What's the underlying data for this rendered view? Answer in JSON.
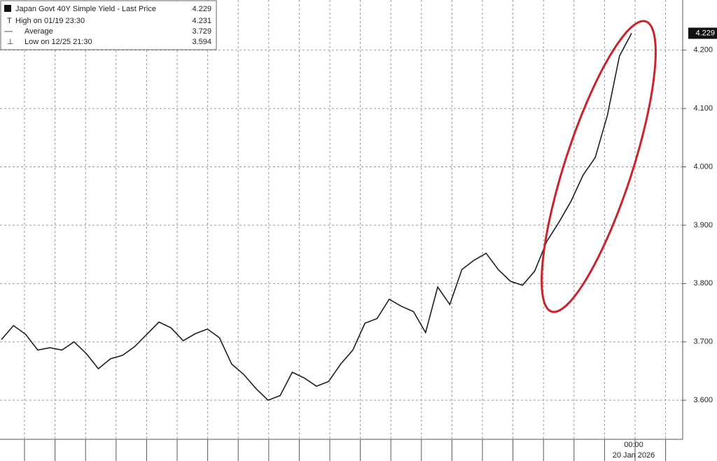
{
  "chart_data": {
    "type": "line",
    "legend": [
      {
        "name": "Japan Govt 40Y Simple Yield - Last Price",
        "value": 4.229
      },
      {
        "name": "High on 01/19 23:30",
        "value": 4.231
      },
      {
        "name": "Average",
        "value": 3.729
      },
      {
        "name": "Low on 12/25 21:30",
        "value": 3.594
      }
    ],
    "categories": [
      null,
      null,
      null,
      null,
      null,
      null,
      null,
      null,
      null,
      null,
      null,
      null,
      null,
      null,
      null,
      null,
      null,
      null,
      null,
      null,
      null,
      null,
      null,
      null,
      null,
      null,
      null,
      null,
      null,
      null,
      null,
      null,
      null,
      null,
      null,
      null,
      null,
      null,
      null,
      null,
      null,
      null,
      null,
      null,
      null,
      null,
      null,
      null,
      null,
      null,
      null,
      null,
      "00:00"
    ],
    "x_date_label": "20 Jan 2026",
    "series": [
      {
        "name": "Japan Govt 40Y Simple Yield",
        "color": "#1b1f2a",
        "values": [
          3.704,
          3.728,
          3.713,
          3.686,
          3.69,
          3.686,
          3.7,
          3.68,
          3.654,
          3.671,
          3.677,
          3.692,
          3.713,
          3.734,
          3.724,
          3.702,
          3.714,
          3.722,
          3.707,
          3.662,
          3.644,
          3.62,
          3.6,
          3.608,
          3.648,
          3.638,
          3.624,
          3.632,
          3.662,
          3.686,
          3.732,
          3.74,
          3.773,
          3.761,
          3.752,
          3.716,
          3.794,
          3.764,
          3.824,
          3.84,
          3.852,
          3.824,
          3.804,
          3.797,
          3.821,
          3.872,
          3.905,
          3.941,
          3.986,
          4.016,
          4.088,
          4.19,
          4.229
        ]
      }
    ],
    "ylim": [
      3.533,
      4.286
    ],
    "yticks": [
      {
        "value": 3.6,
        "label": "3.600"
      },
      {
        "value": 3.7,
        "label": "3.700"
      },
      {
        "value": 3.8,
        "label": "3.800"
      },
      {
        "value": 3.9,
        "label": "3.900"
      },
      {
        "value": 4.0,
        "label": "4.000"
      },
      {
        "value": 4.1,
        "label": "4.100"
      },
      {
        "value": 4.2,
        "label": "4.200"
      }
    ],
    "grid": true
  }
}
